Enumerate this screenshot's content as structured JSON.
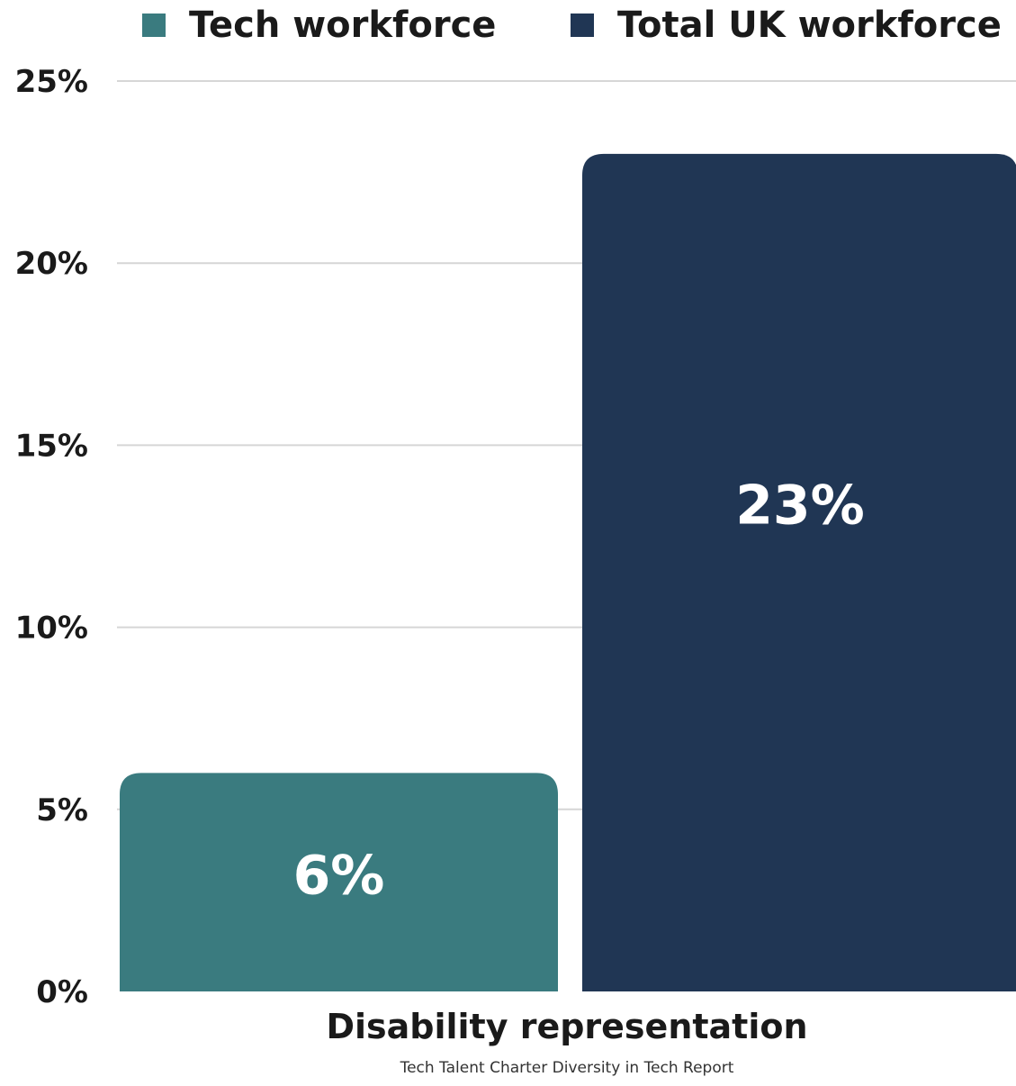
{
  "chart_data": {
    "type": "bar",
    "categories": [
      "Disability representation"
    ],
    "series": [
      {
        "name": "Tech workforce",
        "values": [
          6
        ],
        "color": "#3a7b7f",
        "data_label": "6%"
      },
      {
        "name": "Total UK workforce",
        "values": [
          23
        ],
        "color": "#203654",
        "data_label": "23%"
      }
    ],
    "ylim": [
      0,
      25
    ],
    "yticks": [
      0,
      5,
      10,
      15,
      20,
      25
    ],
    "ytick_labels": [
      "0%",
      "5%",
      "10%",
      "15%",
      "20%",
      "25%"
    ],
    "grid": true,
    "legend_position": "top"
  },
  "legend": {
    "items": [
      {
        "label": "Tech workforce",
        "color": "#3a7b7f"
      },
      {
        "label": "Total UK workforce",
        "color": "#203654"
      }
    ]
  },
  "category_label": "Disability representation",
  "source": "Tech Talent Charter Diversity in Tech Report"
}
